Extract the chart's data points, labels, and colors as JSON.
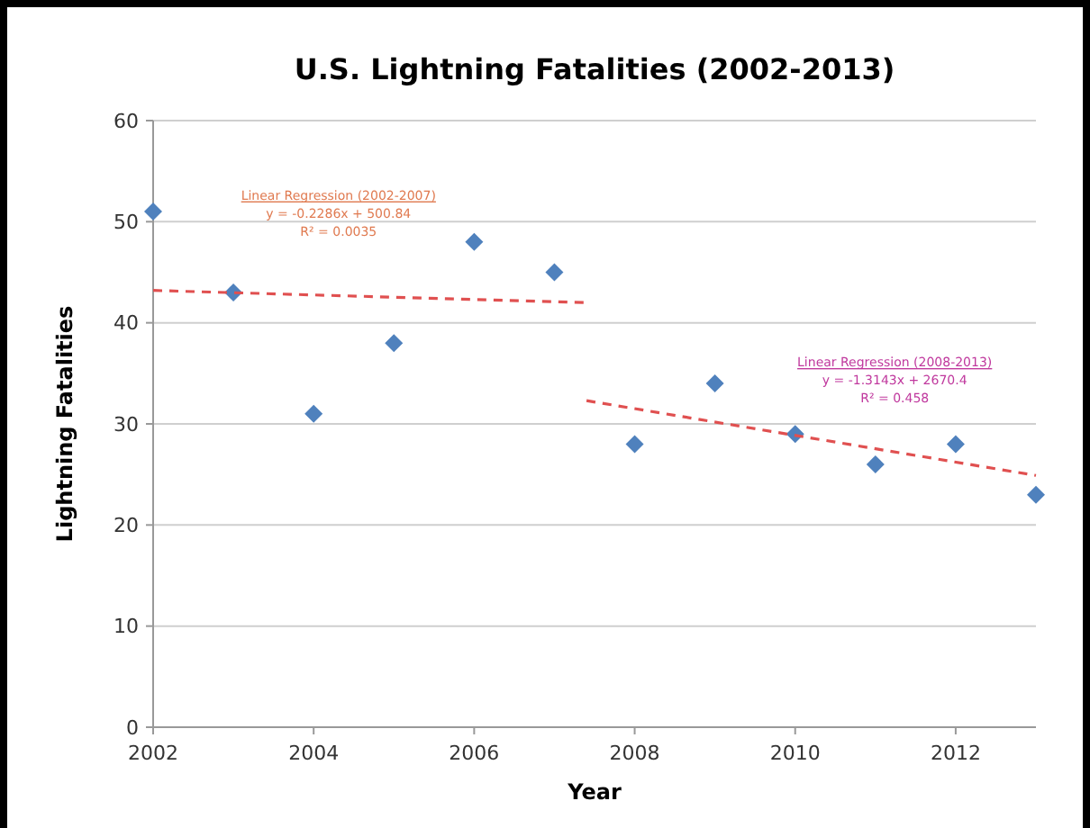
{
  "chart_data": {
    "type": "scatter",
    "title": "U.S. Lightning Fatalities (2002-2013)",
    "xlabel": "Year",
    "ylabel": "Lightning Fatalities",
    "x": [
      2002,
      2003,
      2004,
      2005,
      2006,
      2007,
      2008,
      2009,
      2010,
      2011,
      2012,
      2013
    ],
    "series": [
      {
        "color": "#4f81bd",
        "values": [
          51,
          43,
          31,
          38,
          48,
          45,
          28,
          34,
          29,
          26,
          28,
          23
        ],
        "marker": "diamond"
      },
      {
        "type": "line",
        "color": "#e05050",
        "x": [
          2002,
          2007.4
        ],
        "values": [
          43.2,
          42.0
        ],
        "line_style": "dashed"
      },
      {
        "type": "line",
        "color": "#e05050",
        "x": [
          2007.4,
          2013
        ],
        "values": [
          32.3,
          24.9
        ],
        "line_style": "dashed"
      }
    ],
    "annotations": [
      "Linear Regression (2002-2007)\ny = -0.2286x + 500.84\nR² = 0.0035",
      "Linear Regression (2008-2013)\ny = -1.3143x + 2670.4\nR² = 0.458"
    ],
    "xlim": [
      2002,
      2013
    ],
    "xticks": [
      2002,
      2004,
      2006,
      2008,
      2010,
      2012
    ],
    "ylim": [
      0,
      60
    ],
    "yticks": [
      0,
      10,
      20,
      30,
      40,
      50,
      60
    ],
    "grid": "y"
  }
}
